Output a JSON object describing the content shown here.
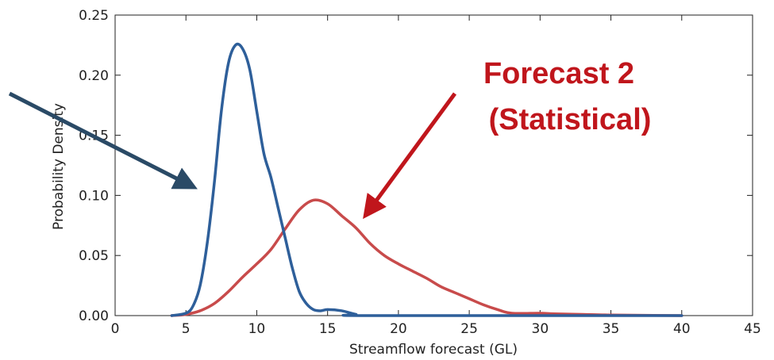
{
  "chart_data": {
    "type": "line",
    "title": "",
    "xlabel": "Streamflow forecast (GL)",
    "ylabel": "Probability Density",
    "xlim": [
      0,
      45
    ],
    "ylim": [
      0,
      0.25
    ],
    "xticks": [
      0,
      5,
      10,
      15,
      20,
      25,
      30,
      35,
      40,
      45
    ],
    "xtick_labels": [
      "0",
      "5",
      "10",
      "15",
      "20",
      "25",
      "30",
      "35",
      "40",
      "45"
    ],
    "yticks": [
      0.0,
      0.05,
      0.1,
      0.15,
      0.2,
      0.25
    ],
    "ytick_labels": [
      "0.00",
      "0.05",
      "0.10",
      "0.15",
      "0.20",
      "0.25"
    ],
    "grid": false,
    "series": [
      {
        "color": "#2e5f9a",
        "points": [
          [
            4.0,
            0.0
          ],
          [
            5.0,
            0.002
          ],
          [
            5.5,
            0.008
          ],
          [
            6.0,
            0.025
          ],
          [
            6.5,
            0.06
          ],
          [
            7.0,
            0.11
          ],
          [
            7.5,
            0.17
          ],
          [
            8.0,
            0.21
          ],
          [
            8.5,
            0.225
          ],
          [
            9.0,
            0.222
          ],
          [
            9.5,
            0.205
          ],
          [
            10.0,
            0.17
          ],
          [
            10.5,
            0.135
          ],
          [
            11.0,
            0.115
          ],
          [
            11.5,
            0.09
          ],
          [
            12.0,
            0.065
          ],
          [
            12.5,
            0.04
          ],
          [
            13.0,
            0.02
          ],
          [
            13.5,
            0.01
          ],
          [
            14.0,
            0.005
          ],
          [
            14.5,
            0.004
          ],
          [
            15.0,
            0.005
          ],
          [
            16.0,
            0.004
          ],
          [
            17.0,
            0.001
          ],
          [
            18.0,
            0.0
          ],
          [
            40.0,
            0.0
          ]
        ]
      },
      {
        "color": "#c84b4b",
        "points": [
          [
            4.0,
            0.0
          ],
          [
            5.0,
            0.001
          ],
          [
            6.0,
            0.004
          ],
          [
            7.0,
            0.01
          ],
          [
            8.0,
            0.02
          ],
          [
            9.0,
            0.032
          ],
          [
            10.0,
            0.043
          ],
          [
            11.0,
            0.055
          ],
          [
            12.0,
            0.072
          ],
          [
            13.0,
            0.088
          ],
          [
            14.0,
            0.096
          ],
          [
            15.0,
            0.093
          ],
          [
            16.0,
            0.083
          ],
          [
            17.0,
            0.073
          ],
          [
            18.0,
            0.06
          ],
          [
            19.0,
            0.05
          ],
          [
            20.0,
            0.043
          ],
          [
            21.0,
            0.037
          ],
          [
            22.0,
            0.031
          ],
          [
            23.0,
            0.024
          ],
          [
            24.0,
            0.019
          ],
          [
            25.0,
            0.014
          ],
          [
            26.0,
            0.009
          ],
          [
            27.0,
            0.005
          ],
          [
            28.0,
            0.002
          ],
          [
            30.0,
            0.002
          ],
          [
            31.0,
            0.0015
          ],
          [
            33.0,
            0.001
          ],
          [
            35.0,
            0.0005
          ],
          [
            38.0,
            0.0002
          ],
          [
            40.0,
            0.0
          ]
        ]
      }
    ],
    "annotations": [
      {
        "text_lines": [
          "Forecast 2",
          "(Statistical)"
        ],
        "color": "#c0161c"
      }
    ],
    "arrow_colors": [
      "#2a4a66",
      "#c0161c"
    ]
  }
}
